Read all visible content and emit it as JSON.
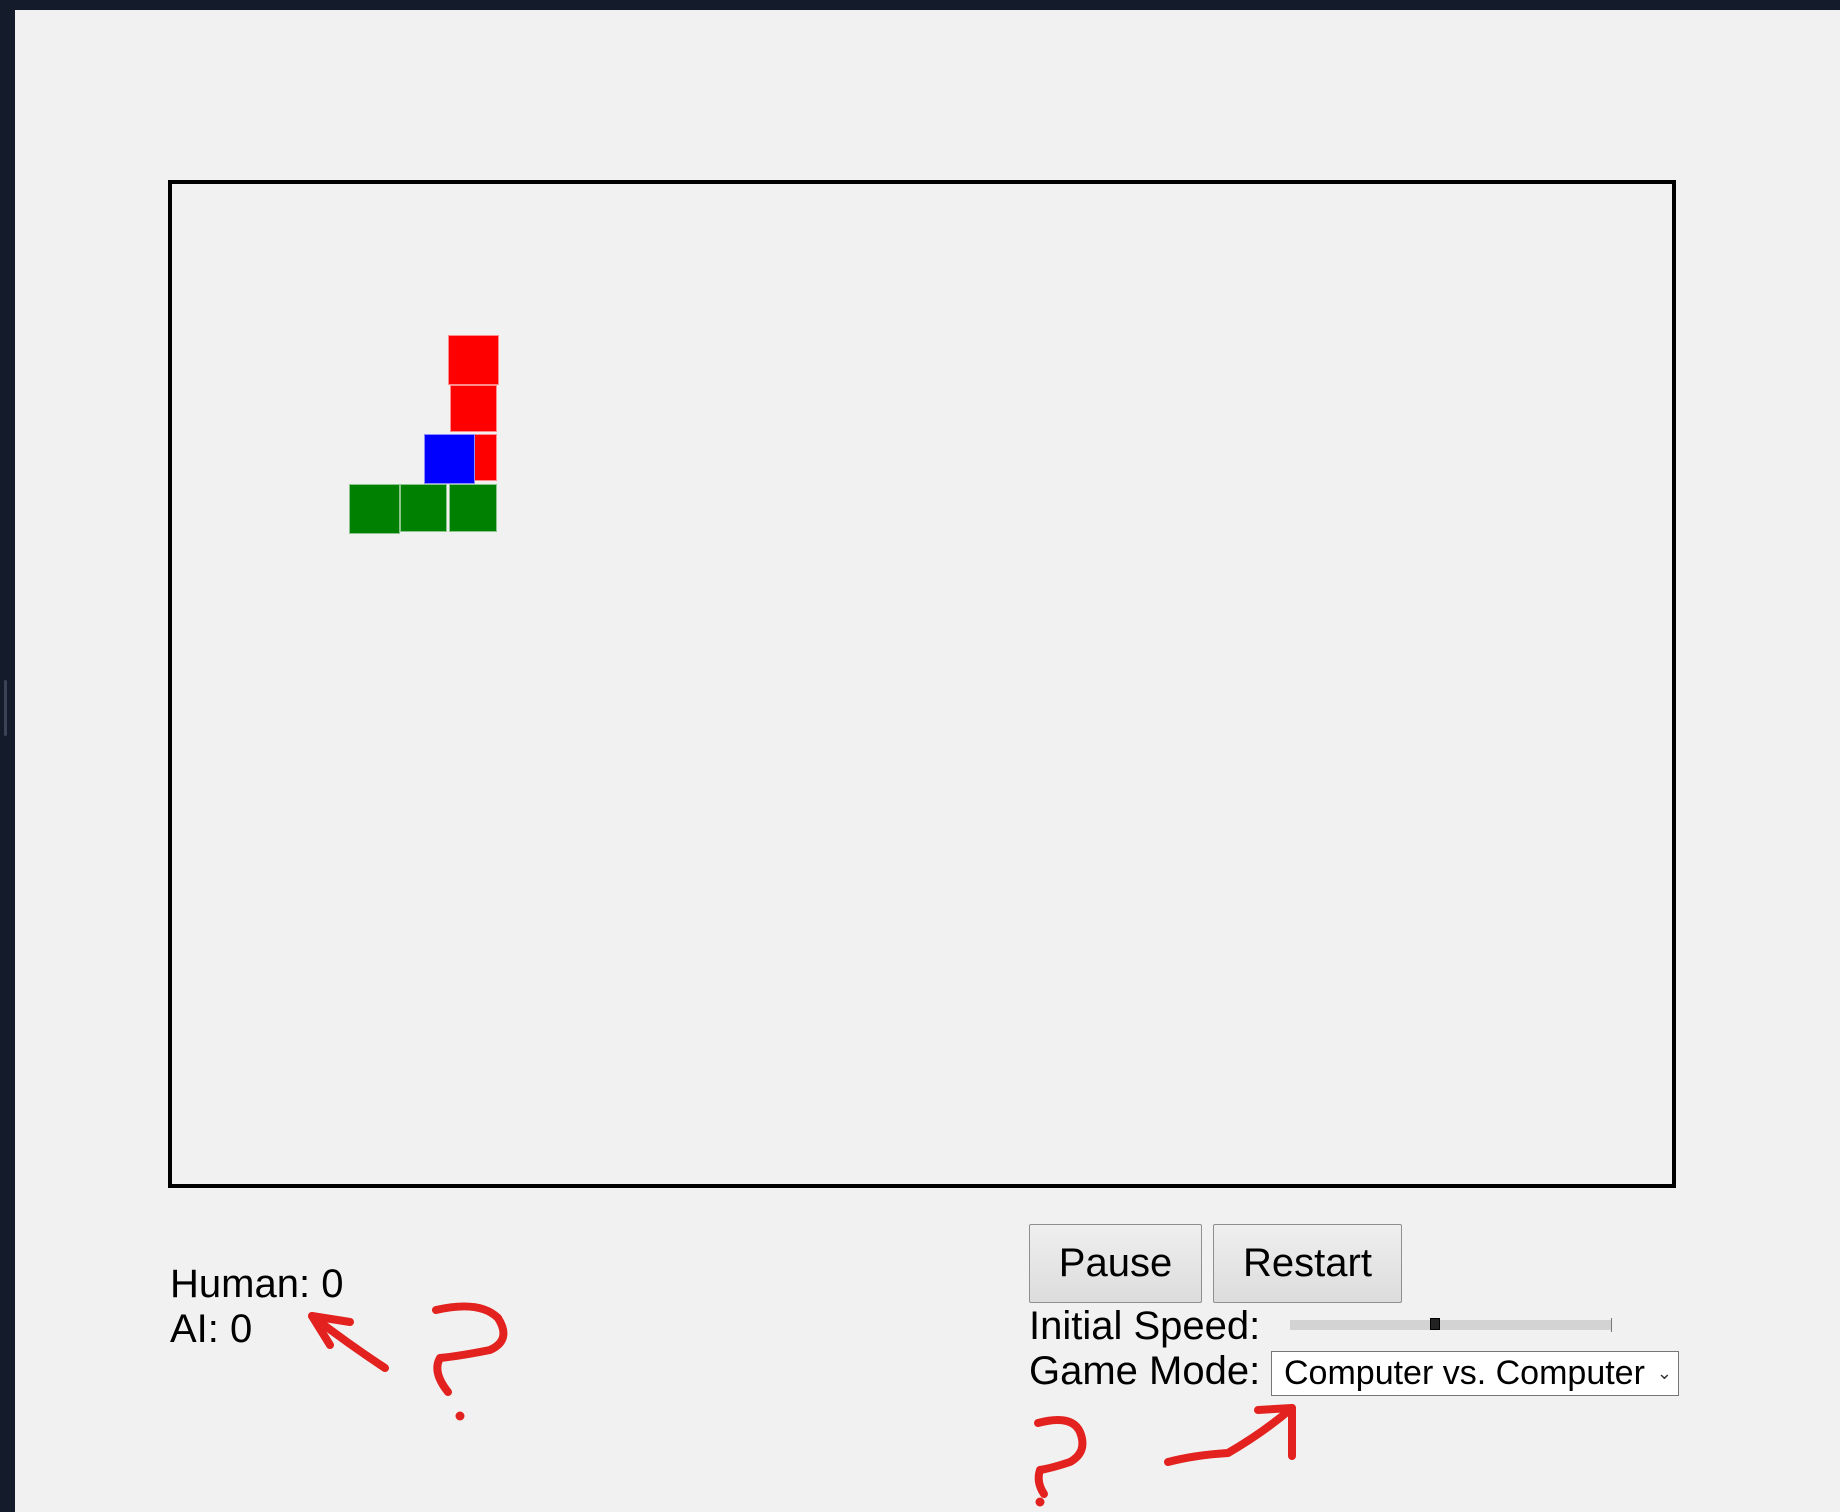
{
  "game": {
    "colors": {
      "board_border": "#000000",
      "snake_human": "#ff0000",
      "snake_ai": "#008000",
      "head_overlap": "#0000ff",
      "annotation": "#e3211e"
    }
  },
  "scores": {
    "human_label": "Human:",
    "human_value": "0",
    "ai_label": "AI:",
    "ai_value": "0"
  },
  "controls": {
    "pause_label": "Pause",
    "restart_label": "Restart",
    "speed_label": "Initial Speed:",
    "speed_level": 0.45,
    "mode_label": "Game Mode:",
    "mode_selected": "Computer vs. Computer"
  },
  "annotations": {
    "glyph": "?"
  }
}
